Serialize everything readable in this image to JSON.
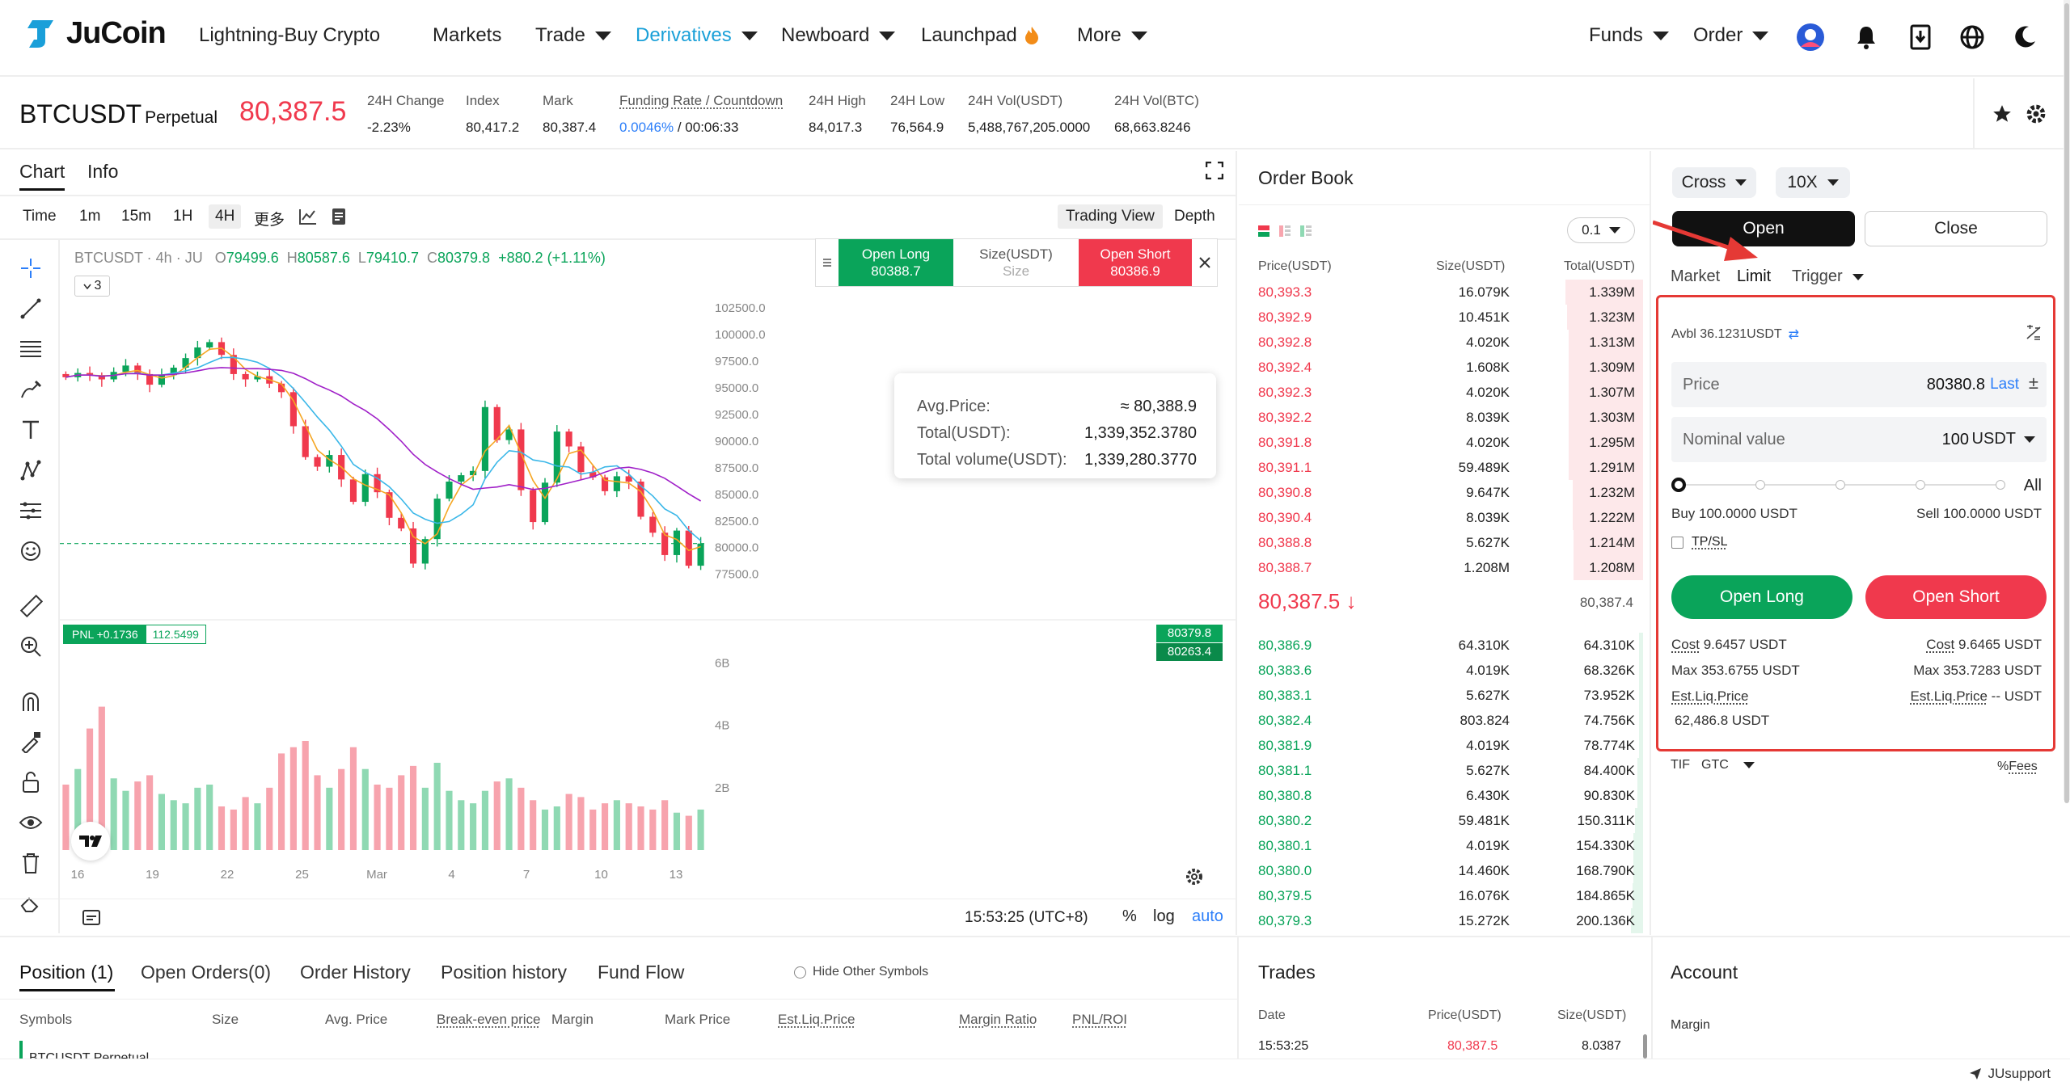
{
  "nav": {
    "brand": "JuCoin",
    "items": [
      {
        "label": "Lightning-Buy Crypto",
        "caret": false
      },
      {
        "label": "Markets",
        "caret": false
      },
      {
        "label": "Trade",
        "caret": true
      },
      {
        "label": "Derivatives",
        "caret": true,
        "active": true
      },
      {
        "label": "Newboard",
        "caret": true
      },
      {
        "label": "Launchpad",
        "caret": false
      },
      {
        "label": "More",
        "caret": true
      }
    ],
    "right": [
      {
        "label": "Funds"
      },
      {
        "label": "Order"
      }
    ],
    "icons": [
      "avatar-icon",
      "bell-icon",
      "download-icon",
      "globe-icon",
      "moon-icon"
    ]
  },
  "ticker": {
    "symbol": "BTCUSDT",
    "contract": "Perpetual",
    "last": "80,387.5",
    "stats": [
      {
        "label": "24H Change",
        "value": "-2.23%",
        "tone": "red"
      },
      {
        "label": "Index",
        "value": "80,417.2"
      },
      {
        "label": "Mark",
        "value": "80,387.4"
      },
      {
        "label": "Funding Rate / Countdown",
        "value": "0.0046%",
        "value2": " / 00:06:33",
        "tone": "blue"
      },
      {
        "label": "24H High",
        "value": "84,017.3"
      },
      {
        "label": "24H Low",
        "value": "76,564.9"
      },
      {
        "label": "24H Vol(USDT)",
        "value": "5,488,767,205.0000"
      },
      {
        "label": "24H Vol(BTC)",
        "value": "68,663.8246"
      }
    ]
  },
  "chart_panel": {
    "tabs": [
      "Chart",
      "Info"
    ],
    "timeframes": [
      "Time",
      "1m",
      "15m",
      "1H",
      "4H",
      "更多"
    ],
    "selected_timeframe": "4H",
    "views": [
      "Trading View",
      "Depth"
    ],
    "ohlc_label": "BTCUSDT · 4h · JU",
    "ohlc": {
      "o": "79499.6",
      "h": "80587.6",
      "l": "79410.7",
      "c": "80379.8",
      "chg": "+880.2 (+1.11%)"
    },
    "indicator_count": "3",
    "widget": {
      "open_long": "Open Long",
      "long_price": "80388.7",
      "size_label": "Size(USDT)",
      "size_placeholder": "Size",
      "open_short": "Open Short",
      "short_price": "80386.9"
    },
    "tooltip": {
      "rows": [
        {
          "label": "Avg.Price:",
          "value": "≈ 80,388.9"
        },
        {
          "label": "Total(USDT):",
          "value": "1,339,352.3780"
        },
        {
          "label": "Total volume(USDT):",
          "value": "1,339,280.3770"
        }
      ]
    },
    "pnl_tag": {
      "label": "PNL +0.1736",
      "value": "112.5499"
    },
    "price_tags": [
      "80379.8",
      "80263.4"
    ],
    "time_footer": "15:53:25 (UTC+8)",
    "footer_opts": [
      "%",
      "log",
      "auto"
    ]
  },
  "chart_data": {
    "type": "candlestick",
    "y_axis_ticks": [
      "102500.0",
      "100000.0",
      "97500.0",
      "95000.0",
      "92500.0",
      "90000.0",
      "87500.0",
      "85000.0",
      "82500.0",
      "80000.0",
      "77500.0"
    ],
    "ylim": [
      75500,
      103200
    ],
    "x_ticks": [
      "16",
      "19",
      "22",
      "25",
      "Mar",
      "4",
      "7",
      "10",
      "13"
    ],
    "volume_ticks": [
      "6B",
      "4B",
      "2B"
    ],
    "close_path": [
      96000,
      96400,
      96200,
      95800,
      96500,
      97100,
      96300,
      95300,
      96200,
      96900,
      97800,
      98800,
      99300,
      98100,
      96300,
      95800,
      96100,
      95400,
      94600,
      91400,
      88500,
      87600,
      88700,
      86400,
      84300,
      86900,
      85200,
      82800,
      81800,
      78500,
      80800,
      84600,
      86200,
      86800,
      87200,
      93200,
      90100,
      91100,
      85400,
      82400,
      86100,
      90900,
      89500,
      87100,
      86600,
      85300,
      86700,
      86200,
      82900,
      81400,
      79300,
      81600,
      78300,
      80380
    ],
    "volume_path": [
      2.1,
      2.6,
      3.9,
      4.6,
      2.3,
      1.9,
      2.2,
      2.4,
      1.8,
      1.6,
      1.5,
      2.0,
      2.1,
      1.4,
      1.3,
      1.7,
      1.5,
      2.0,
      3.1,
      3.3,
      3.5,
      2.4,
      2.0,
      2.6,
      3.3,
      2.6,
      2.1,
      2.0,
      2.4,
      2.7,
      2.0,
      2.8,
      1.9,
      1.6,
      1.5,
      1.9,
      2.2,
      2.3,
      2.0,
      1.6,
      1.3,
      1.4,
      1.8,
      1.7,
      1.3,
      1.5,
      1.6,
      1.5,
      1.4,
      1.3,
      1.6,
      1.2,
      1.1,
      1.3
    ]
  },
  "orderbook": {
    "title": "Order Book",
    "precision": "0.1",
    "headers": [
      "Price(USDT)",
      "Size(USDT)",
      "Total(USDT)"
    ],
    "asks": [
      {
        "p": "80,393.3",
        "s": "16.079K",
        "t": "1.339M",
        "d": 0.58
      },
      {
        "p": "80,392.9",
        "s": "10.451K",
        "t": "1.323M",
        "d": 0.57
      },
      {
        "p": "80,392.8",
        "s": "4.020K",
        "t": "1.313M",
        "d": 0.56
      },
      {
        "p": "80,392.4",
        "s": "1.608K",
        "t": "1.309M",
        "d": 0.56
      },
      {
        "p": "80,392.3",
        "s": "4.020K",
        "t": "1.307M",
        "d": 0.56
      },
      {
        "p": "80,392.2",
        "s": "8.039K",
        "t": "1.303M",
        "d": 0.56
      },
      {
        "p": "80,391.8",
        "s": "4.020K",
        "t": "1.295M",
        "d": 0.56
      },
      {
        "p": "80,391.1",
        "s": "59.489K",
        "t": "1.291M",
        "d": 0.56
      },
      {
        "p": "80,390.8",
        "s": "9.647K",
        "t": "1.232M",
        "d": 0.53
      },
      {
        "p": "80,390.4",
        "s": "8.039K",
        "t": "1.222M",
        "d": 0.53
      },
      {
        "p": "80,388.8",
        "s": "5.627K",
        "t": "1.214M",
        "d": 0.52
      },
      {
        "p": "80,388.7",
        "s": "1.208M",
        "t": "1.208M",
        "d": 0.52
      }
    ],
    "mid": {
      "price": "80,387.5",
      "arrow": "↓",
      "mark": "80,387.4"
    },
    "bids": [
      {
        "p": "80,386.9",
        "s": "64.310K",
        "t": "64.310K",
        "d": 0.03
      },
      {
        "p": "80,383.6",
        "s": "4.019K",
        "t": "68.326K",
        "d": 0.03
      },
      {
        "p": "80,383.1",
        "s": "5.627K",
        "t": "73.952K",
        "d": 0.03
      },
      {
        "p": "80,382.4",
        "s": "803.824",
        "t": "74.756K",
        "d": 0.03
      },
      {
        "p": "80,381.9",
        "s": "4.019K",
        "t": "78.774K",
        "d": 0.03
      },
      {
        "p": "80,381.1",
        "s": "5.627K",
        "t": "84.400K",
        "d": 0.04
      },
      {
        "p": "80,380.8",
        "s": "6.430K",
        "t": "90.830K",
        "d": 0.04
      },
      {
        "p": "80,380.2",
        "s": "59.481K",
        "t": "150.311K",
        "d": 0.06
      },
      {
        "p": "80,380.1",
        "s": "4.019K",
        "t": "154.330K",
        "d": 0.07
      },
      {
        "p": "80,380.0",
        "s": "14.460K",
        "t": "168.790K",
        "d": 0.07
      },
      {
        "p": "80,379.5",
        "s": "16.076K",
        "t": "184.865K",
        "d": 0.08
      },
      {
        "p": "80,379.3",
        "s": "15.272K",
        "t": "200.136K",
        "d": 0.09
      }
    ]
  },
  "orderform": {
    "margin_mode": "Cross",
    "leverage": "10X",
    "open": "Open",
    "close": "Close",
    "types": [
      "Market",
      "Limit",
      "Trigger"
    ],
    "avbl": "Avbl 36.1231USDT",
    "price_label": "Price",
    "price_value": "80380.8",
    "price_last": "Last",
    "nominal_label": "Nominal value",
    "nominal_value": "100",
    "nominal_unit": "USDT",
    "slider_all": "All",
    "buy": "Buy 100.0000 USDT",
    "sell": "Sell 100.0000 USDT",
    "tpsl": "TP/SL",
    "open_long": "Open Long",
    "open_short": "Open Short",
    "cost_label": "Cost",
    "cost_long": "9.6457 USDT",
    "cost_short": "9.6465 USDT",
    "max_label": "Max",
    "max_long": "353.6755  USDT",
    "max_short": "353.7283  USDT",
    "liq_label": "Est.Liq.Price",
    "liq_long": "62,486.8  USDT",
    "liq_short": "--  USDT",
    "tif_label": "TIF",
    "tif_value": "GTC",
    "fees": "Fees"
  },
  "bottom": {
    "tabs": [
      "Position (1)",
      "Open Orders(0)",
      "Order History",
      "Position history",
      "Fund Flow"
    ],
    "hide_other": "Hide Other Symbols",
    "columns": [
      "Symbols",
      "Size",
      "Avg. Price",
      "Break-even price",
      "Margin",
      "Mark Price",
      "Est.Liq.Price",
      "Margin Ratio",
      "PNL/ROI"
    ],
    "row_symbol": "BTCUSDT  Perpetual",
    "trades": {
      "title": "Trades",
      "headers": [
        "Date",
        "Price(USDT)",
        "Size(USDT)"
      ],
      "row": {
        "date": "15:53:25",
        "price": "80,387.5",
        "size": "8.0387"
      }
    },
    "account": {
      "title": "Account",
      "margin_label": "Margin"
    },
    "support": "JUsupport"
  },
  "colors": {
    "up": "#0aa45a",
    "down": "#f0394d",
    "accent": "#2d7ff9",
    "ma_fast": "#f5a623",
    "ma_mid": "#3ab7e8",
    "ma_slow": "#a020c8",
    "annotation": "#e53935"
  }
}
